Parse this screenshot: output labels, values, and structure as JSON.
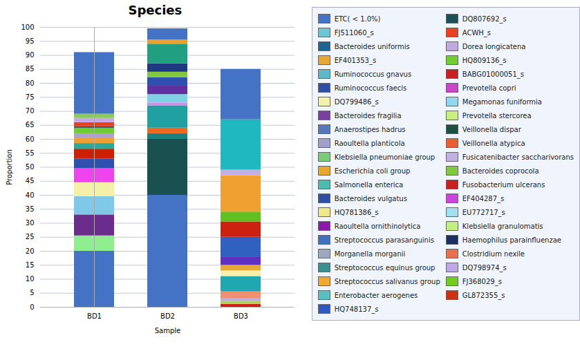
{
  "chart_data": {
    "type": "bar",
    "title": "Species",
    "xlabel": "Sample",
    "ylabel": "Proportion",
    "stacked": true,
    "grid": true,
    "categories": [
      "BD1",
      "BD2",
      "BD3"
    ],
    "ylim": [
      0,
      100
    ],
    "yticks": [
      0,
      5,
      10,
      15,
      20,
      25,
      30,
      35,
      40,
      45,
      50,
      55,
      60,
      65,
      70,
      75,
      80,
      85,
      90,
      95,
      100
    ],
    "stacks": [
      [
        {
          "color": "#4472c4",
          "value": 20.0
        },
        {
          "color": "#90ee90",
          "value": 5.5
        },
        {
          "color": "#6b2d8b",
          "value": 7.5
        },
        {
          "color": "#80c8e8",
          "value": 6.5
        },
        {
          "color": "#f5f0a8",
          "value": 5.0
        },
        {
          "color": "#ee44ee",
          "value": 5.0
        },
        {
          "color": "#3050b0",
          "value": 3.5
        },
        {
          "color": "#cc2000",
          "value": 3.5
        },
        {
          "color": "#30a898",
          "value": 2.0
        },
        {
          "color": "#f0a030",
          "value": 2.0
        },
        {
          "color": "#b0a0d0",
          "value": 1.5
        },
        {
          "color": "#70cc30",
          "value": 2.0
        },
        {
          "color": "#1a4f5a",
          "value": 0.5
        },
        {
          "color": "#e84020",
          "value": 1.5
        },
        {
          "color": "#c8a8e8",
          "value": 1.5
        },
        {
          "color": "#88cc50",
          "value": 1.5
        },
        {
          "color": "#4472c4",
          "value": 22.0
        }
      ],
      [
        {
          "color": "#4472c4",
          "value": 40.0
        },
        {
          "color": "#1a5050",
          "value": 20.0
        },
        {
          "color": "#1a8080",
          "value": 2.0
        },
        {
          "color": "#f06820",
          "value": 2.0
        },
        {
          "color": "#20a0a0",
          "value": 8.0
        },
        {
          "color": "#dd88ee",
          "value": 1.0
        },
        {
          "color": "#80d0e8",
          "value": 3.0
        },
        {
          "color": "#6030a0",
          "value": 3.0
        },
        {
          "color": "#3050b0",
          "value": 3.0
        },
        {
          "color": "#80c840",
          "value": 2.0
        },
        {
          "color": "#1f3a7f",
          "value": 3.0
        },
        {
          "color": "#20a080",
          "value": 7.0
        },
        {
          "color": "#e8a030",
          "value": 1.5
        },
        {
          "color": "#4472c4",
          "value": 4.0
        }
      ],
      [
        {
          "color": "#cc2010",
          "value": 1.0
        },
        {
          "color": "#b0d060",
          "value": 1.0
        },
        {
          "color": "#c0b0e0",
          "value": 1.0
        },
        {
          "color": "#f09070",
          "value": 2.5
        },
        {
          "color": "#20a8b0",
          "value": 5.5
        },
        {
          "color": "#f5f0a8",
          "value": 2.0
        },
        {
          "color": "#e8a838",
          "value": 2.0
        },
        {
          "color": "#6030c0",
          "value": 3.0
        },
        {
          "color": "#3060c0",
          "value": 7.0
        },
        {
          "color": "#cc2010",
          "value": 5.5
        },
        {
          "color": "#60c020",
          "value": 3.5
        },
        {
          "color": "#f0a030",
          "value": 13.0
        },
        {
          "color": "#c0b0e0",
          "value": 2.0
        },
        {
          "color": "#20b8c0",
          "value": 18.0
        },
        {
          "color": "#4472c4",
          "value": 18.0
        }
      ]
    ],
    "legend_entries": [
      {
        "name": "ETC( < 1.0%)",
        "color": "#4472c4"
      },
      {
        "name": "FJ511060_s",
        "color": "#70c4d4"
      },
      {
        "name": "Bacteroides uniformis",
        "color": "#1f6391"
      },
      {
        "name": "EF401353_s",
        "color": "#e8a838"
      },
      {
        "name": "Ruminococcus gnavus",
        "color": "#5db8c8"
      },
      {
        "name": "Ruminococcus faecis",
        "color": "#2e4fa3"
      },
      {
        "name": "DQ799486_s",
        "color": "#f5f0a8"
      },
      {
        "name": "Bacteroides fragilia",
        "color": "#7b3fa0"
      },
      {
        "name": "Anaerostipes hadrus",
        "color": "#5577bb"
      },
      {
        "name": "Raoultella planticola",
        "color": "#a0a0c8"
      },
      {
        "name": "Klebsiella pneumoniae group",
        "color": "#7acc7a"
      },
      {
        "name": "Escherichia coli group",
        "color": "#e8a830"
      },
      {
        "name": "Salmonella enterica",
        "color": "#4dbcb0"
      },
      {
        "name": "Bacteroides vulgatus",
        "color": "#2e4fa3"
      },
      {
        "name": "HQ781386_s",
        "color": "#f0e888"
      },
      {
        "name": "Raoultella ornithinolytica",
        "color": "#8b1aaa"
      },
      {
        "name": "Streptococcus parasanguinis",
        "color": "#4070c0"
      },
      {
        "name": "Morganella morganii",
        "color": "#a0a8c0"
      },
      {
        "name": "Streptococcus equinus group",
        "color": "#3a9090"
      },
      {
        "name": "Streptococcus salivanus group",
        "color": "#f0a830"
      },
      {
        "name": "Enterobacter aerogenes",
        "color": "#58c0c0"
      },
      {
        "name": "HQ748137_s",
        "color": "#2e5abf"
      },
      {
        "name": "DQ807692_s",
        "color": "#1a4f5a"
      },
      {
        "name": "ACWH_s",
        "color": "#e84020"
      },
      {
        "name": "Dorea longicatena",
        "color": "#c0a8e0"
      },
      {
        "name": "HQ809136_s",
        "color": "#70cc30"
      },
      {
        "name": "BABG01000051_s",
        "color": "#c82020"
      },
      {
        "name": "Prevotella copri",
        "color": "#cc44cc"
      },
      {
        "name": "Megamonas funiformia",
        "color": "#90d8f0"
      },
      {
        "name": "Prevotella stercorea",
        "color": "#c8f080"
      },
      {
        "name": "Veillonella dispar",
        "color": "#1a5040"
      },
      {
        "name": "Veillonella atypica",
        "color": "#e86030"
      },
      {
        "name": "Fusicatenibacter saccharivorans",
        "color": "#c0b0e0"
      },
      {
        "name": "Bacteroides coprocola",
        "color": "#80c840"
      },
      {
        "name": "Fusobacterium ulcerans",
        "color": "#cc2020"
      },
      {
        "name": "EF404287_s",
        "color": "#cc44dd"
      },
      {
        "name": "EU772717_s",
        "color": "#a0e0f0"
      },
      {
        "name": "Klebsiella granulomatis",
        "color": "#c0f080"
      },
      {
        "name": "Haemophilus parainfluenzae",
        "color": "#1a3060"
      },
      {
        "name": "Clostridium nexile",
        "color": "#e87050"
      },
      {
        "name": "DQ798974_s",
        "color": "#c0a8e8"
      },
      {
        "name": "FJ368029_s",
        "color": "#70cc20"
      },
      {
        "name": "GL872355_s",
        "color": "#cc3010"
      }
    ]
  }
}
